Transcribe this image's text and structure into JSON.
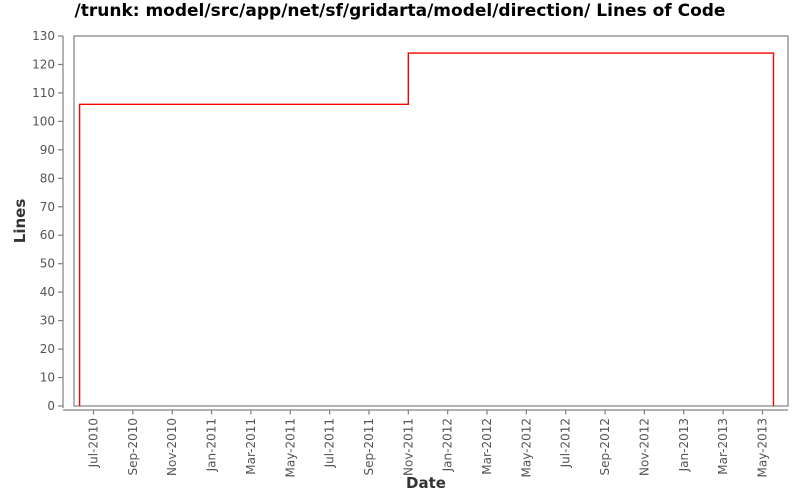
{
  "chart_data": {
    "type": "line",
    "step": true,
    "title": "/trunk: model/src/app/net/sf/gridarta/model/direction/ Lines of Code",
    "xlabel": "Date",
    "ylabel": "Lines",
    "ylim": [
      0,
      130
    ],
    "grid": false,
    "legend_position": "none",
    "y_ticks": [
      0,
      10,
      20,
      30,
      40,
      50,
      60,
      70,
      80,
      90,
      100,
      110,
      120,
      130
    ],
    "x_tick_labels": [
      "Jul-2010",
      "Sep-2010",
      "Nov-2010",
      "Jan-2011",
      "Mar-2011",
      "May-2011",
      "Jul-2011",
      "Sep-2011",
      "Nov-2011",
      "Jan-2012",
      "Mar-2012",
      "May-2012",
      "Jul-2012",
      "Sep-2012",
      "Nov-2012",
      "Jan-2013",
      "Mar-2013",
      "May-2013"
    ],
    "colors": {
      "line": "#ff0000",
      "frame": "#808080",
      "axis": "#808080",
      "tick_text": "#555555",
      "label_text": "#333333",
      "title_text": "#000000",
      "background": "#ffffff"
    },
    "series": [
      {
        "name": "Lines of Code",
        "color": "#ff0000",
        "points": [
          {
            "date": "2010-06-10",
            "value": 0
          },
          {
            "date": "2010-06-10",
            "value": 106
          },
          {
            "date": "2011-11-01",
            "value": 106
          },
          {
            "date": "2011-11-01",
            "value": 124
          },
          {
            "date": "2013-05-18",
            "value": 124
          },
          {
            "date": "2013-05-18",
            "value": 0
          }
        ]
      }
    ]
  }
}
